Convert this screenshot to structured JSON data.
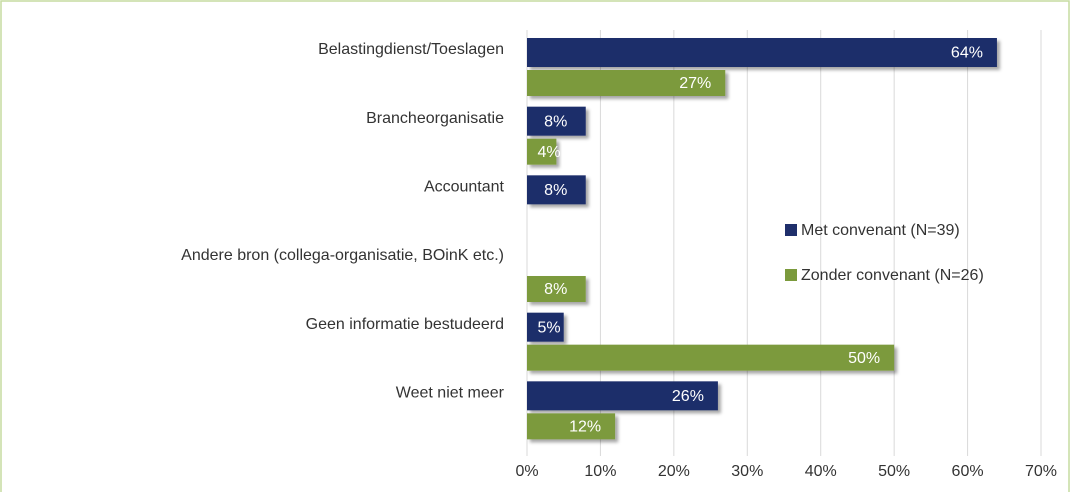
{
  "chart_data": {
    "type": "bar",
    "orientation": "horizontal",
    "categories": [
      "Belastingdienst/Toeslagen",
      "Brancheorganisatie",
      "Accountant",
      "Andere bron (collega-organisatie, BOinK etc.)",
      "Geen informatie bestudeerd",
      "Weet niet meer"
    ],
    "series": [
      {
        "name": "Met convenant (N=39)",
        "color": "#1f2f6b",
        "values": [
          64,
          8,
          8,
          null,
          5,
          26
        ],
        "value_labels": [
          "64%",
          "8%",
          "8%",
          null,
          "5%",
          "26%"
        ]
      },
      {
        "name": "Zonder convenant (N=26)",
        "color": "#7b9a3c",
        "values": [
          27,
          4,
          null,
          8,
          50,
          12
        ],
        "value_labels": [
          "27%",
          "4%",
          null,
          "8%",
          "50%",
          "12%"
        ]
      }
    ],
    "xlim": [
      0,
      70
    ],
    "xticks": [
      {
        "value": 0,
        "label": "0%"
      },
      {
        "value": 10,
        "label": "10%"
      },
      {
        "value": 20,
        "label": "20%"
      },
      {
        "value": 30,
        "label": "30%"
      },
      {
        "value": 40,
        "label": "40%"
      },
      {
        "value": 50,
        "label": "50%"
      },
      {
        "value": 60,
        "label": "60%"
      },
      {
        "value": 70,
        "label": "70%"
      }
    ],
    "grid": true,
    "legend": "right"
  }
}
